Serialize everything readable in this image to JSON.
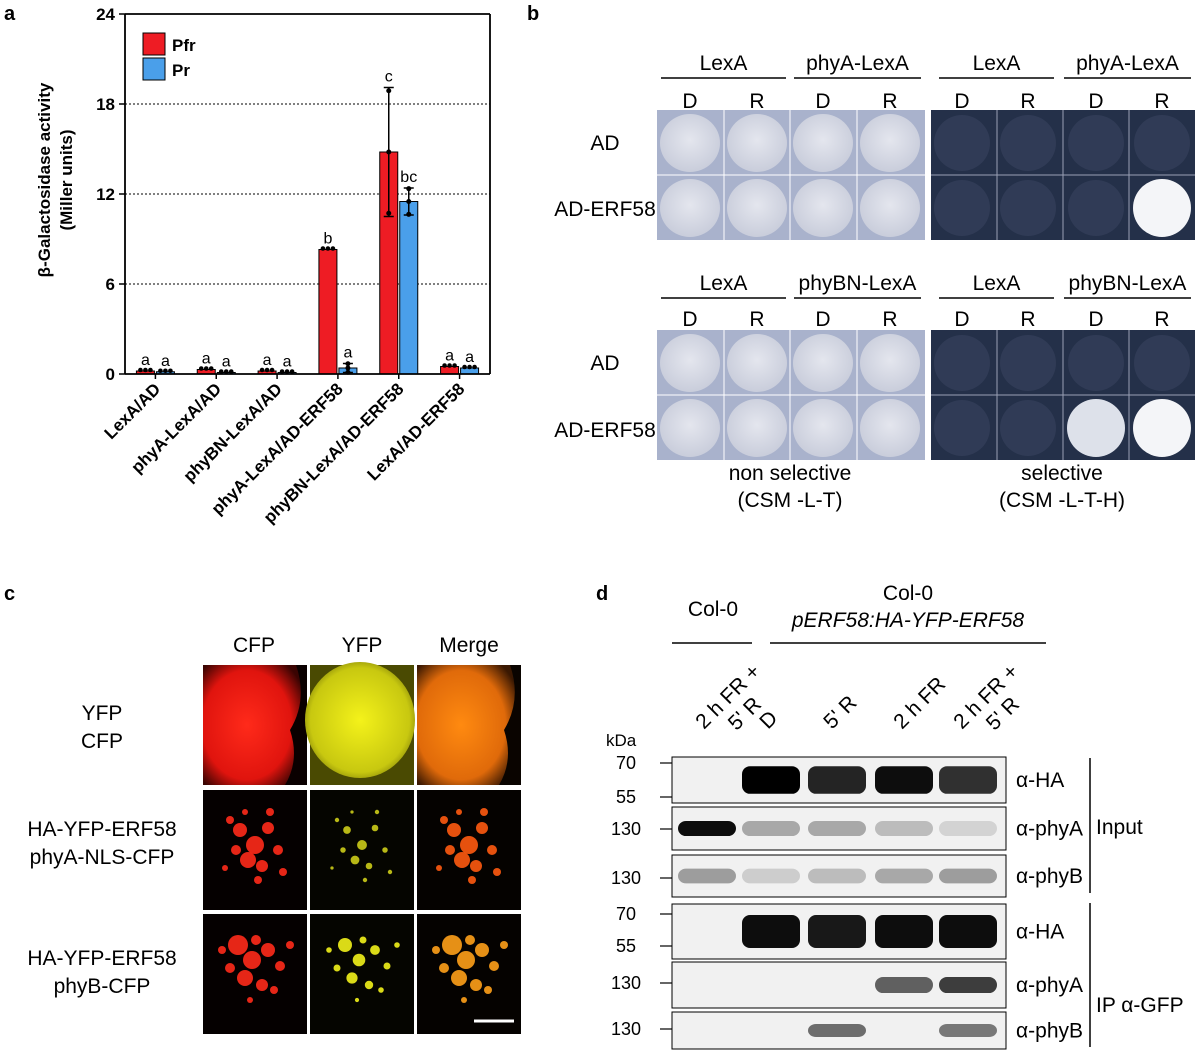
{
  "panels": {
    "a": "a",
    "b": "b",
    "c": "c",
    "d": "d"
  },
  "chart_data": {
    "type": "bar",
    "ylabel_line1": "β-Galactosidase activity",
    "ylabel_line2": "(Miller units)",
    "ylim": [
      0,
      24
    ],
    "yticks": [
      0,
      6,
      12,
      18,
      24
    ],
    "gridlines": [
      6,
      12,
      18
    ],
    "legend_placement": "top-left",
    "categories": [
      "LexA/AD",
      "phyA-LexA/AD",
      "phyBN-LexA/AD",
      "phyA-LexA/AD-ERF58",
      "phyBN-LexA/AD-ERF58",
      "LexA/AD-ERF58"
    ],
    "series": [
      {
        "name": "Pfr",
        "color": "#ee1c24",
        "values": [
          0.2,
          0.3,
          0.2,
          8.3,
          14.8,
          0.5
        ],
        "errors": [
          0.05,
          0.15,
          0.05,
          0.15,
          4.3,
          0.05
        ],
        "letters": [
          "a",
          "a",
          "a",
          "b",
          "c",
          "a"
        ]
      },
      {
        "name": "Pr",
        "color": "#4a9fea",
        "values": [
          0.15,
          0.1,
          0.1,
          0.4,
          11.5,
          0.4
        ],
        "errors": [
          0.05,
          0.05,
          0.05,
          0.3,
          0.9,
          0.05
        ],
        "letters": [
          "a",
          "a",
          "a",
          "a",
          "bc",
          "a"
        ]
      }
    ]
  },
  "panel_b": {
    "top_headers": [
      "LexA",
      "phyA-LexA",
      "LexA",
      "phyA-LexA"
    ],
    "bottom_headers": [
      "LexA",
      "phyBN-LexA",
      "LexA",
      "phyBN-LexA"
    ],
    "dr": [
      "D",
      "R",
      "D",
      "R",
      "D",
      "R",
      "D",
      "R"
    ],
    "rows": [
      "AD",
      "AD-ERF58"
    ],
    "nonselective_1": "non selective",
    "nonselective_2": "(CSM -L-T)",
    "selective_1": "selective",
    "selective_2": "(CSM -L-T-H)",
    "colors": {
      "plate_light": "#a9b2cc",
      "plate_dark": "#243049",
      "colony": "#d6d9e4",
      "growth": "#f4f5f8"
    }
  },
  "panel_c": {
    "columns": [
      "CFP",
      "YFP",
      "Merge"
    ],
    "rows": [
      [
        "YFP",
        "CFP"
      ],
      [
        "HA-YFP-ERF58",
        "phyA-NLS-CFP"
      ],
      [
        "HA-YFP-ERF58",
        "phyB-CFP"
      ]
    ]
  },
  "panel_d": {
    "col0": "Col-0",
    "col0_b": "Col-0",
    "transgene": "pERF58:HA-YFP-ERF58",
    "lanes": [
      [
        "2 h FR +",
        "5' R"
      ],
      [
        "D"
      ],
      [
        "5' R"
      ],
      [
        "2 h FR"
      ],
      [
        "2 h FR +",
        "5' R"
      ]
    ],
    "kda": "kDa",
    "blots": [
      {
        "markers": [
          "70",
          "55"
        ],
        "antibody": "α-HA"
      },
      {
        "markers": [
          "130"
        ],
        "antibody": "α-phyA"
      },
      {
        "markers": [
          "130"
        ],
        "antibody": "α-phyB"
      },
      {
        "markers": [
          "70",
          "55"
        ],
        "antibody": "α-HA"
      },
      {
        "markers": [
          "130"
        ],
        "antibody": "α-phyA"
      },
      {
        "markers": [
          "130"
        ],
        "antibody": "α-phyB"
      }
    ],
    "input_label": "Input",
    "ip_label": "IP α-GFP"
  }
}
